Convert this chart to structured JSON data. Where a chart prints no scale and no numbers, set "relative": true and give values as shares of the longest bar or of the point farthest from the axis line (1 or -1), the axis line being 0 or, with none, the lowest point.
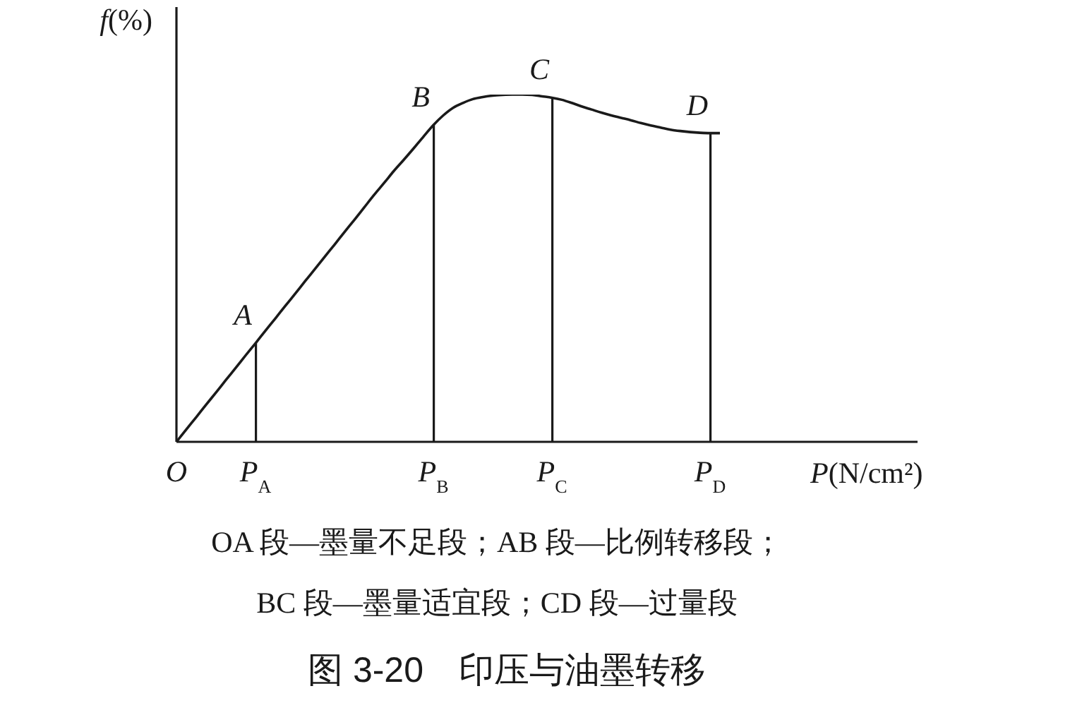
{
  "chart_data": {
    "type": "line",
    "title": "图 3-20　印压与油墨转移",
    "xlabel": "P(N/cm²)",
    "ylabel": "f(%)",
    "relative": true,
    "categories": [
      "O",
      null,
      null,
      null,
      null,
      null,
      null,
      null,
      "P$_{A}$",
      null,
      null,
      null,
      null,
      null,
      null,
      null,
      null,
      null,
      null,
      null,
      null,
      null,
      null,
      null,
      null,
      null,
      "P$_{B}$",
      null,
      null,
      null,
      null,
      null,
      null,
      null,
      null,
      null,
      null,
      null,
      "P$_{C}$",
      null,
      null,
      null,
      null,
      null,
      null,
      null,
      null,
      null,
      null,
      null,
      null,
      null,
      null,
      null,
      "P$_{D}$",
      null,
      null,
      null,
      null,
      null,
      null,
      null,
      null,
      null,
      null,
      null,
      null,
      null,
      null,
      null,
      null,
      null,
      null,
      null,
      null,
      null
    ],
    "series": [
      {
        "type": "line",
        "color": "#1a1a1a",
        "values": [
          0,
          0.036,
          0.071,
          0.107,
          0.142,
          0.178,
          0.213,
          0.249,
          0.284,
          0.32,
          0.355,
          0.391,
          0.426,
          0.462,
          0.497,
          0.533,
          0.568,
          0.604,
          0.639,
          0.675,
          0.711,
          0.745,
          0.78,
          0.812,
          0.845,
          0.879,
          0.912,
          0.94,
          0.962,
          0.976,
          0.987,
          0.993,
          0.997,
          0.999,
          1,
          1,
          0.999,
          0.995,
          0.991,
          0.985,
          0.976,
          0.966,
          0.957,
          0.948,
          0.94,
          0.933,
          0.926,
          0.918,
          0.911,
          0.905,
          0.899,
          0.895,
          0.892,
          0.89,
          0.889,
          0.889,
          null,
          null,
          null,
          null,
          null,
          null,
          null,
          null,
          null,
          null,
          null,
          null,
          null,
          null,
          null,
          null,
          null,
          null,
          null,
          null
        ]
      },
      {
        "type": "bar",
        "color": "#1a1a1a",
        "values": [
          null,
          null,
          null,
          null,
          null,
          null,
          null,
          null,
          0.284,
          null,
          null,
          null,
          null,
          null,
          null,
          null,
          null,
          null,
          null,
          null,
          null,
          null,
          null,
          null,
          null,
          null,
          0.912,
          null,
          null,
          null,
          null,
          null,
          null,
          null,
          null,
          null,
          null,
          null,
          0.991,
          null,
          null,
          null,
          null,
          null,
          null,
          null,
          null,
          null,
          null,
          null,
          null,
          null,
          null,
          null,
          0.889,
          null,
          null,
          null,
          null,
          null,
          null,
          null,
          null,
          null,
          null,
          null,
          null,
          null,
          null,
          null,
          null,
          null,
          null,
          null,
          null,
          null
        ]
      }
    ],
    "annotations": [
      {
        "text": "A",
        "x": "P$_{A}$",
        "y": 0.284
      },
      {
        "text": "B",
        "x": "P$_{B}$",
        "y": 0.912
      },
      {
        "text": "C",
        "x": "P$_{C}$",
        "y": 0.991
      },
      {
        "text": "D",
        "x": "P$_{D}$",
        "y": 0.889
      },
      "OA 段—墨量不足段；AB 段—比例转移段；",
      "BC 段—墨量适宜段；CD 段—过量段"
    ]
  }
}
